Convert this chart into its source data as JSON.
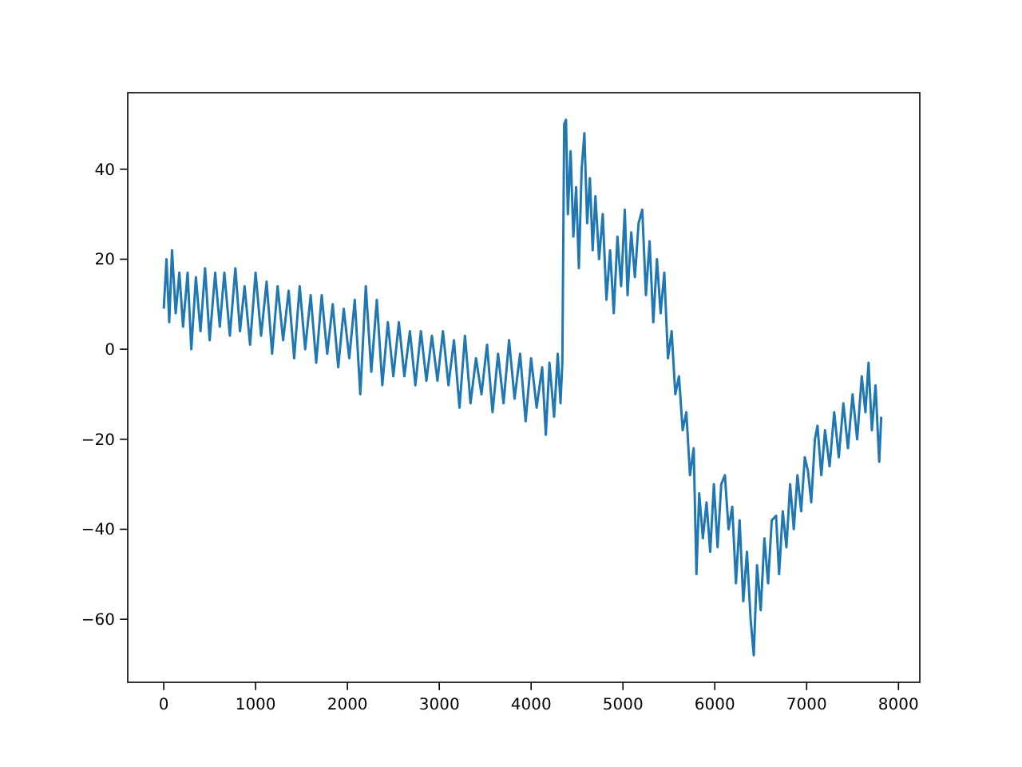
{
  "chart_data": {
    "type": "line",
    "color": "#1f77b4",
    "x": [
      0,
      30,
      60,
      90,
      130,
      170,
      210,
      260,
      300,
      350,
      400,
      450,
      500,
      560,
      610,
      660,
      720,
      780,
      830,
      880,
      940,
      1000,
      1060,
      1120,
      1180,
      1240,
      1300,
      1360,
      1420,
      1480,
      1540,
      1600,
      1660,
      1720,
      1780,
      1840,
      1900,
      1960,
      2020,
      2080,
      2140,
      2200,
      2260,
      2320,
      2380,
      2440,
      2500,
      2560,
      2620,
      2680,
      2740,
      2800,
      2860,
      2920,
      2980,
      3040,
      3100,
      3160,
      3220,
      3280,
      3340,
      3400,
      3460,
      3520,
      3580,
      3640,
      3700,
      3760,
      3820,
      3880,
      3940,
      4000,
      4060,
      4120,
      4160,
      4200,
      4250,
      4290,
      4320,
      4340,
      4360,
      4380,
      4400,
      4430,
      4460,
      4490,
      4520,
      4550,
      4580,
      4610,
      4640,
      4670,
      4700,
      4740,
      4780,
      4820,
      4860,
      4900,
      4940,
      4980,
      5020,
      5050,
      5090,
      5130,
      5170,
      5210,
      5250,
      5290,
      5330,
      5370,
      5410,
      5450,
      5490,
      5530,
      5570,
      5610,
      5650,
      5690,
      5730,
      5770,
      5800,
      5830,
      5870,
      5910,
      5950,
      5990,
      6030,
      6070,
      6110,
      6150,
      6190,
      6230,
      6270,
      6310,
      6350,
      6390,
      6424,
      6460,
      6500,
      6540,
      6580,
      6620,
      6667,
      6700,
      6740,
      6780,
      6820,
      6860,
      6900,
      6940,
      6980,
      7014,
      7050,
      7090,
      7118,
      7160,
      7200,
      7250,
      7300,
      7350,
      7400,
      7450,
      7500,
      7550,
      7600,
      7640,
      7674,
      7710,
      7750,
      7790,
      7812
    ],
    "values": [
      9,
      20,
      6,
      22,
      8,
      17,
      5,
      17,
      0,
      16,
      4,
      18,
      2,
      17,
      5,
      17,
      3,
      18,
      4,
      14,
      1,
      17,
      3,
      15,
      -1,
      14,
      2,
      13,
      -2,
      14,
      0,
      12,
      -3,
      12,
      -1,
      10,
      -4,
      9,
      -2,
      11,
      -10,
      14,
      -5,
      11,
      -8,
      6,
      -6,
      6,
      -6,
      4,
      -8,
      4,
      -7,
      3,
      -7,
      4,
      -8,
      2,
      -13,
      3,
      -12,
      -2,
      -10,
      1,
      -14,
      -1,
      -12,
      2,
      -11,
      -1,
      -16,
      -2,
      -13,
      -4,
      -19,
      -3,
      -15,
      -1,
      -12,
      -3,
      50,
      51,
      30,
      44,
      25,
      36,
      18,
      40,
      48,
      28,
      38,
      22,
      34,
      20,
      30,
      11,
      22,
      8,
      25,
      14,
      31,
      12,
      26,
      16,
      28,
      31,
      12,
      24,
      6,
      20,
      8,
      17,
      -2,
      4,
      -10,
      -6,
      -18,
      -14,
      -28,
      -22,
      -50,
      -32,
      -42,
      -34,
      -45,
      -30,
      -44,
      -30,
      -28,
      -40,
      -35,
      -52,
      -38,
      -56,
      -45,
      -60,
      -68,
      -48,
      -58,
      -42,
      -52,
      -38,
      -37,
      -50,
      -36,
      -44,
      -30,
      -40,
      -28,
      -36,
      -24,
      -27,
      -34,
      -20,
      -17,
      -28,
      -18,
      -26,
      -14,
      -24,
      -12,
      -22,
      -10,
      -20,
      -6,
      -14,
      -3,
      -18,
      -8,
      -25,
      -15
    ],
    "xlim": [
      -392,
      8232
    ],
    "ylim": [
      -74,
      57
    ],
    "xticks": [
      0,
      1000,
      2000,
      3000,
      4000,
      5000,
      6000,
      7000,
      8000
    ],
    "yticks": [
      -60,
      -40,
      -20,
      0,
      20,
      40
    ]
  }
}
